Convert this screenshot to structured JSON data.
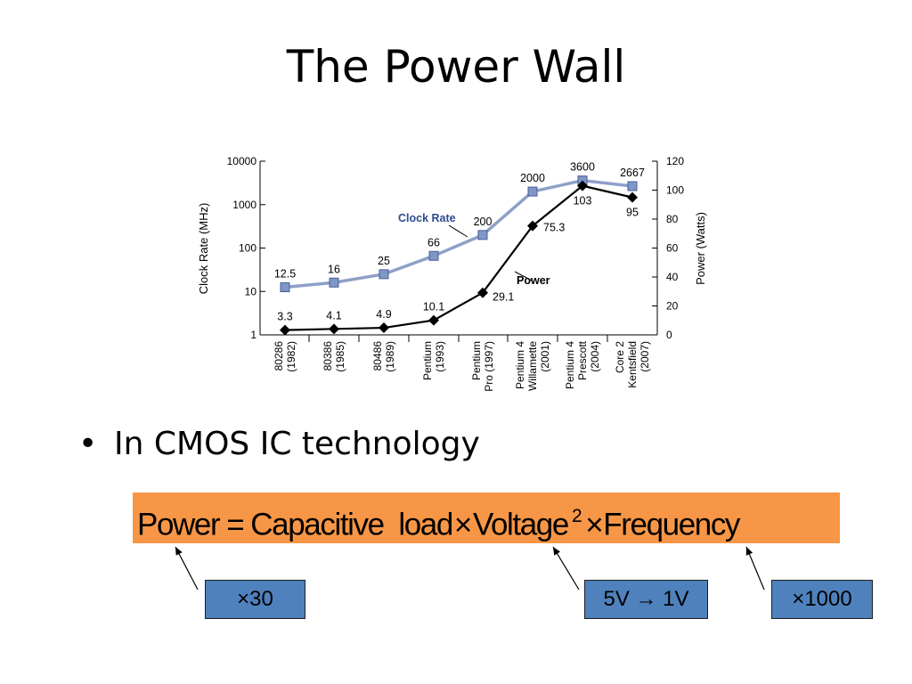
{
  "slide": {
    "title": "The Power Wall",
    "bullet": "In CMOS IC technology",
    "bullet_marker": "•"
  },
  "formula": {
    "power": "Power",
    "equals": "=",
    "capacitive_load": "Capacitive  load",
    "times1": "×",
    "voltage": "Voltage",
    "exponent": "2",
    "times2": "×",
    "frequency": "Frequency"
  },
  "annotations": {
    "load_factor": "×30",
    "voltage_change": "5V → 1V",
    "frequency_factor": "×1000"
  },
  "colors": {
    "formula_bg": "#f79646",
    "note_bg": "#4f81bd",
    "clock_line": "#8ea0c8",
    "clock_marker": "#7f96c9",
    "clock_label": "#2e4c8f",
    "power_line": "#000000"
  },
  "chart_data": {
    "type": "line",
    "categories": [
      "80286\n(1982)",
      "80386\n(1985)",
      "80486\n(1989)",
      "Pentium\n(1993)",
      "Pentium\nPro (1997)",
      "Pentium 4\nWillamette\n(2001)",
      "Pentium 4\nPrescott\n(2004)",
      "Core 2\nKentsfield\n(2007)"
    ],
    "series": [
      {
        "name": "Clock Rate",
        "axis": "left",
        "values": [
          12.5,
          16,
          25,
          66,
          200,
          2000,
          3600,
          2667
        ],
        "labels": [
          "12.5",
          "16",
          "25",
          "66",
          "200",
          "2000",
          "3600",
          "2667"
        ]
      },
      {
        "name": "Power",
        "axis": "right",
        "values": [
          3.3,
          4.1,
          4.9,
          10.1,
          29.1,
          75.3,
          103,
          95
        ],
        "labels": [
          "3.3",
          "4.1",
          "4.9",
          "10.1",
          "29.1",
          "75.3",
          "103",
          "95"
        ]
      }
    ],
    "left_axis": {
      "label": "Clock Rate (MHz)",
      "scale": "log",
      "ylim": [
        1,
        10000
      ],
      "ticks": [
        1,
        10,
        100,
        1000,
        10000
      ],
      "tick_labels": [
        "1",
        "10",
        "100",
        "1000",
        "10000"
      ]
    },
    "right_axis": {
      "label": "Power (Watts)",
      "scale": "linear",
      "ylim": [
        0,
        120
      ],
      "ticks": [
        0,
        20,
        40,
        60,
        80,
        100,
        120
      ],
      "tick_labels": [
        "0",
        "20",
        "40",
        "60",
        "80",
        "100",
        "120"
      ]
    },
    "grid": false
  }
}
